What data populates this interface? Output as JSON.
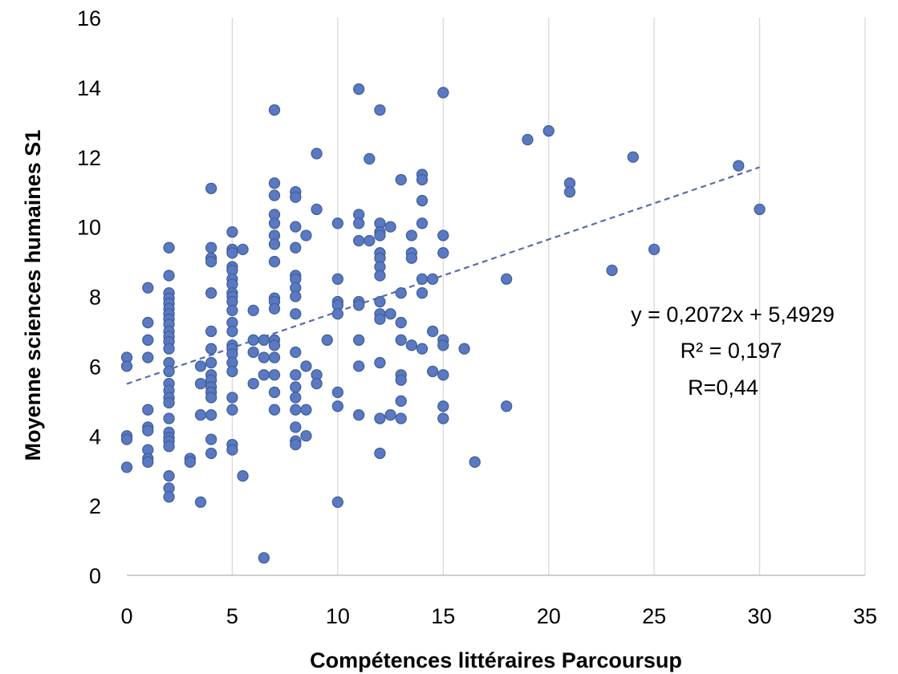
{
  "chart_data": {
    "type": "scatter",
    "xlabel": "Compétences littéraires Parcoursup",
    "ylabel": "Moyenne sciences humaines S1",
    "xlim": [
      0,
      35
    ],
    "ylim": [
      0,
      16
    ],
    "x_ticks": [
      "0",
      "5",
      "10",
      "15",
      "20",
      "25",
      "30",
      "35"
    ],
    "y_ticks": [
      "0",
      "2",
      "4",
      "6",
      "8",
      "10",
      "12",
      "14",
      "16"
    ],
    "grid": "vertical",
    "marker_color": "#5b79c0",
    "marker_edge": "#41609f",
    "trendline": {
      "slope": 0.2072,
      "intercept": 5.4929,
      "x_range": [
        0,
        30
      ],
      "color": "#5a6aa8",
      "style": "dashed"
    },
    "annotations": [
      "y = 0,2072x + 5,4929",
      "R² = 0,197",
      "R=0,44"
    ],
    "points": [
      [
        0,
        6.25
      ],
      [
        0,
        6.0
      ],
      [
        0,
        4.0
      ],
      [
        0,
        3.9
      ],
      [
        0,
        3.1
      ],
      [
        1,
        8.25
      ],
      [
        1,
        7.25
      ],
      [
        1,
        6.75
      ],
      [
        1,
        6.25
      ],
      [
        1,
        4.75
      ],
      [
        1,
        4.25
      ],
      [
        1,
        4.15
      ],
      [
        1,
        3.6
      ],
      [
        1,
        3.35
      ],
      [
        1,
        3.25
      ],
      [
        2,
        9.4
      ],
      [
        2,
        8.6
      ],
      [
        2,
        8.1
      ],
      [
        2,
        7.95
      ],
      [
        2,
        7.8
      ],
      [
        2,
        7.65
      ],
      [
        2,
        7.5
      ],
      [
        2,
        7.35
      ],
      [
        2,
        7.2
      ],
      [
        2,
        7.0
      ],
      [
        2,
        6.85
      ],
      [
        2,
        6.7
      ],
      [
        2,
        6.5
      ],
      [
        2,
        6.1
      ],
      [
        2,
        5.85
      ],
      [
        2,
        5.5
      ],
      [
        2,
        5.3
      ],
      [
        2,
        5.1
      ],
      [
        2,
        4.95
      ],
      [
        2,
        4.5
      ],
      [
        2,
        4.1
      ],
      [
        2,
        3.95
      ],
      [
        2,
        3.85
      ],
      [
        2,
        3.7
      ],
      [
        2,
        2.85
      ],
      [
        2,
        2.5
      ],
      [
        2,
        2.25
      ],
      [
        3,
        3.35
      ],
      [
        3,
        3.25
      ],
      [
        3.5,
        6.0
      ],
      [
        3.5,
        5.5
      ],
      [
        3.5,
        4.6
      ],
      [
        3.5,
        2.1
      ],
      [
        4,
        11.1
      ],
      [
        4,
        9.4
      ],
      [
        4,
        9.1
      ],
      [
        4,
        9.0
      ],
      [
        4,
        8.1
      ],
      [
        4,
        7.0
      ],
      [
        4,
        6.5
      ],
      [
        4,
        6.1
      ],
      [
        4,
        5.75
      ],
      [
        4,
        5.6
      ],
      [
        4,
        5.4
      ],
      [
        4,
        5.25
      ],
      [
        4,
        5.1
      ],
      [
        4,
        4.6
      ],
      [
        4,
        3.9
      ],
      [
        4,
        3.5
      ],
      [
        5,
        9.85
      ],
      [
        5,
        9.35
      ],
      [
        5,
        9.25
      ],
      [
        5,
        8.85
      ],
      [
        5,
        8.75
      ],
      [
        5,
        8.5
      ],
      [
        5,
        8.35
      ],
      [
        5,
        8.1
      ],
      [
        5,
        8.0
      ],
      [
        5,
        7.85
      ],
      [
        5,
        7.6
      ],
      [
        5,
        7.25
      ],
      [
        5,
        7.0
      ],
      [
        5,
        6.6
      ],
      [
        5,
        6.5
      ],
      [
        5,
        6.35
      ],
      [
        5,
        6.1
      ],
      [
        5,
        5.85
      ],
      [
        5,
        5.1
      ],
      [
        5,
        4.75
      ],
      [
        5,
        3.75
      ],
      [
        5,
        3.6
      ],
      [
        5.5,
        9.35
      ],
      [
        5.5,
        2.85
      ],
      [
        6,
        7.6
      ],
      [
        6,
        6.75
      ],
      [
        6,
        6.4
      ],
      [
        6,
        5.5
      ],
      [
        6.5,
        6.75
      ],
      [
        6.5,
        6.25
      ],
      [
        6.5,
        5.75
      ],
      [
        6.5,
        0.5
      ],
      [
        7,
        13.35
      ],
      [
        7,
        11.25
      ],
      [
        7,
        10.9
      ],
      [
        7,
        10.35
      ],
      [
        7,
        10.1
      ],
      [
        7,
        9.75
      ],
      [
        7,
        9.5
      ],
      [
        7,
        9.0
      ],
      [
        7,
        7.95
      ],
      [
        7,
        7.85
      ],
      [
        7,
        7.65
      ],
      [
        7,
        6.75
      ],
      [
        7,
        6.6
      ],
      [
        7,
        6.25
      ],
      [
        7,
        5.75
      ],
      [
        7,
        5.25
      ],
      [
        7,
        4.75
      ],
      [
        8,
        11.0
      ],
      [
        8,
        10.85
      ],
      [
        8,
        10.0
      ],
      [
        8,
        9.4
      ],
      [
        8,
        8.6
      ],
      [
        8,
        8.5
      ],
      [
        8,
        8.25
      ],
      [
        8,
        8.0
      ],
      [
        8,
        7.5
      ],
      [
        8,
        6.4
      ],
      [
        8,
        5.75
      ],
      [
        8,
        5.4
      ],
      [
        8,
        5.1
      ],
      [
        8,
        4.75
      ],
      [
        8,
        4.25
      ],
      [
        8,
        3.85
      ],
      [
        8,
        3.75
      ],
      [
        8.5,
        9.75
      ],
      [
        8.5,
        6.0
      ],
      [
        8.5,
        4.75
      ],
      [
        8.5,
        4.0
      ],
      [
        9,
        12.1
      ],
      [
        9,
        10.5
      ],
      [
        9,
        5.75
      ],
      [
        9,
        5.5
      ],
      [
        9.5,
        6.75
      ],
      [
        10,
        10.1
      ],
      [
        10,
        8.5
      ],
      [
        10,
        7.85
      ],
      [
        10,
        7.75
      ],
      [
        10,
        7.5
      ],
      [
        10,
        5.25
      ],
      [
        10,
        4.85
      ],
      [
        10,
        2.1
      ],
      [
        11,
        13.95
      ],
      [
        11,
        10.35
      ],
      [
        11,
        10.1
      ],
      [
        11,
        9.6
      ],
      [
        11,
        7.85
      ],
      [
        11,
        7.75
      ],
      [
        11,
        6.75
      ],
      [
        11,
        6.0
      ],
      [
        11,
        4.6
      ],
      [
        11.5,
        11.95
      ],
      [
        11.5,
        9.6
      ],
      [
        12,
        13.35
      ],
      [
        12,
        10.1
      ],
      [
        12,
        9.85
      ],
      [
        12,
        9.75
      ],
      [
        12,
        9.25
      ],
      [
        12,
        9.1
      ],
      [
        12,
        8.85
      ],
      [
        12,
        8.6
      ],
      [
        12,
        7.85
      ],
      [
        12,
        7.5
      ],
      [
        12,
        7.35
      ],
      [
        12,
        6.1
      ],
      [
        12,
        4.5
      ],
      [
        12,
        3.5
      ],
      [
        12.5,
        10.0
      ],
      [
        12.5,
        7.5
      ],
      [
        12.5,
        4.6
      ],
      [
        13,
        11.35
      ],
      [
        13,
        8.1
      ],
      [
        13,
        7.25
      ],
      [
        13,
        6.75
      ],
      [
        13,
        5.75
      ],
      [
        13,
        5.6
      ],
      [
        13,
        5.0
      ],
      [
        13,
        4.5
      ],
      [
        13.5,
        9.75
      ],
      [
        13.5,
        9.25
      ],
      [
        13.5,
        9.1
      ],
      [
        13.5,
        6.6
      ],
      [
        14,
        11.5
      ],
      [
        14,
        11.35
      ],
      [
        14,
        10.75
      ],
      [
        14,
        10.1
      ],
      [
        14,
        8.5
      ],
      [
        14,
        8.1
      ],
      [
        14,
        6.5
      ],
      [
        14.5,
        8.5
      ],
      [
        14.5,
        7.0
      ],
      [
        14.5,
        5.85
      ],
      [
        15,
        13.85
      ],
      [
        15,
        9.75
      ],
      [
        15,
        9.25
      ],
      [
        15,
        6.75
      ],
      [
        15,
        6.6
      ],
      [
        15,
        5.75
      ],
      [
        15,
        4.85
      ],
      [
        15,
        4.5
      ],
      [
        16,
        6.5
      ],
      [
        16.5,
        3.25
      ],
      [
        18,
        8.5
      ],
      [
        18,
        4.85
      ],
      [
        19,
        12.5
      ],
      [
        20,
        12.75
      ],
      [
        21,
        11.25
      ],
      [
        21,
        11.0
      ],
      [
        23,
        8.75
      ],
      [
        24,
        12.0
      ],
      [
        25,
        9.35
      ],
      [
        29,
        11.75
      ],
      [
        30,
        10.5
      ]
    ]
  }
}
